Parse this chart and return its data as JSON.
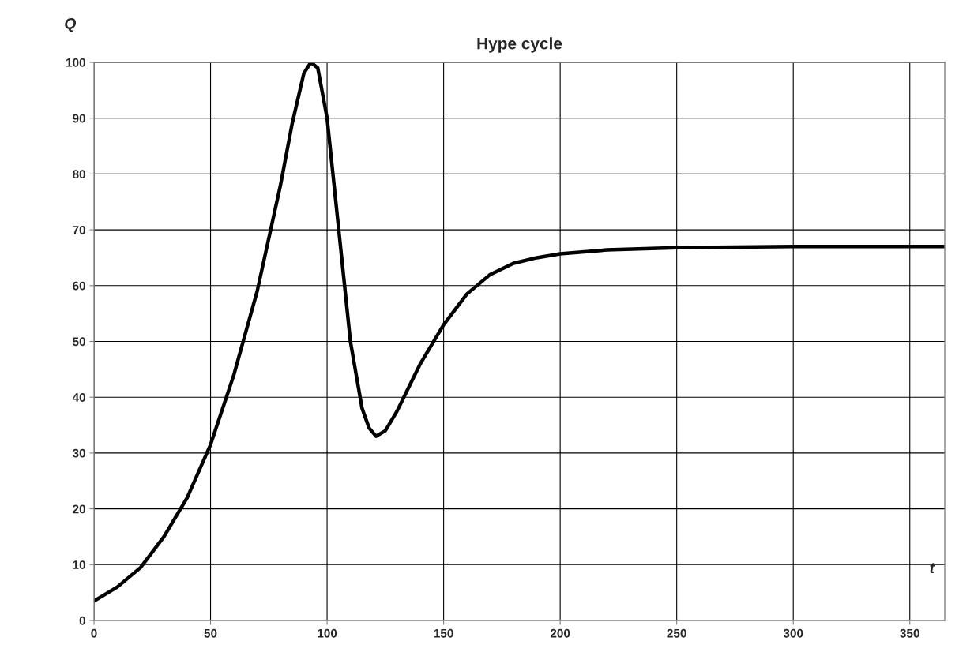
{
  "chart_data": {
    "type": "line",
    "title": "Hype cycle",
    "xlabel": "t",
    "ylabel": "Q",
    "x": [
      0,
      10,
      20,
      30,
      40,
      50,
      60,
      70,
      80,
      85,
      90,
      93,
      96,
      100,
      105,
      110,
      115,
      118,
      121,
      125,
      130,
      140,
      150,
      160,
      170,
      180,
      190,
      200,
      220,
      250,
      300,
      365
    ],
    "series": [
      {
        "color": "#000000",
        "values": [
          3.5,
          6,
          9.5,
          15,
          22,
          31.5,
          44,
          59,
          78,
          89,
          98,
          100,
          99,
          90,
          70,
          50,
          38,
          34.5,
          33,
          34,
          37.5,
          46,
          53,
          58.5,
          62,
          64,
          65,
          65.7,
          66.4,
          66.8,
          67,
          67
        ]
      }
    ],
    "xlim": [
      0,
      365
    ],
    "ylim": [
      0,
      100
    ],
    "xticks": [
      0,
      50,
      100,
      150,
      200,
      250,
      300,
      350
    ],
    "yticks": [
      0,
      10,
      20,
      30,
      40,
      50,
      60,
      70,
      80,
      90,
      100
    ],
    "grid": true,
    "marker": "none",
    "line_style": "solid"
  }
}
